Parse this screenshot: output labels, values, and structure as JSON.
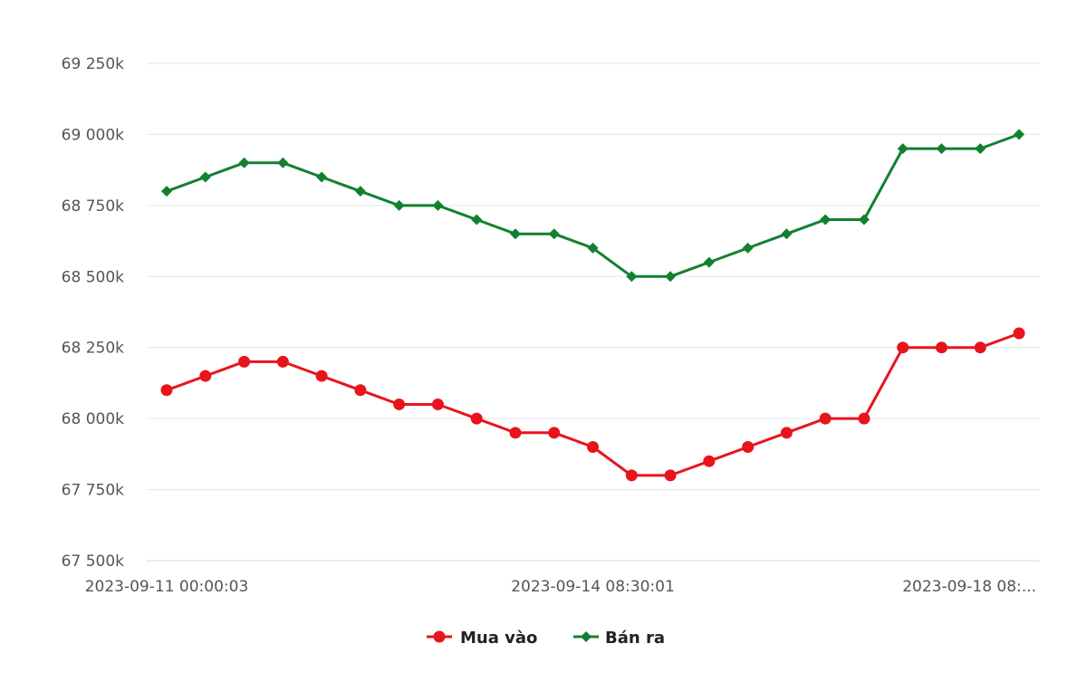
{
  "chart_data": {
    "type": "line",
    "title": "",
    "xlabel": "",
    "ylabel": "",
    "ylim": [
      67500,
      69250
    ],
    "y_ticks": [
      67500,
      67750,
      68000,
      68250,
      68500,
      68750,
      69000,
      69250
    ],
    "y_tick_labels": [
      "67 500k",
      "67 750k",
      "68 000k",
      "68 250k",
      "68 500k",
      "68 750k",
      "69 000k",
      "69 250k"
    ],
    "x_tick_labels": [
      {
        "index": 0,
        "label": "2023-09-11 00:00:03"
      },
      {
        "index": 11,
        "label": "2023-09-14 08:30:01"
      },
      {
        "index": 22,
        "label": "2023-09-18 08:..."
      }
    ],
    "x_count": 23,
    "grid": true,
    "legend_position": "bottom-center",
    "series": [
      {
        "name": "Mua vào",
        "color": "#e8141c",
        "marker": "circle",
        "values": [
          68100,
          68150,
          68200,
          68200,
          68150,
          68100,
          68050,
          68050,
          68000,
          67950,
          67950,
          67900,
          67800,
          67800,
          67850,
          67900,
          67950,
          68000,
          68000,
          68250,
          68250,
          68250,
          68300
        ]
      },
      {
        "name": "Bán ra",
        "color": "#118130",
        "marker": "diamond",
        "values": [
          68800,
          68850,
          68900,
          68900,
          68850,
          68800,
          68750,
          68750,
          68700,
          68650,
          68650,
          68600,
          68500,
          68500,
          68550,
          68600,
          68650,
          68700,
          68700,
          68950,
          68950,
          68950,
          69000
        ]
      }
    ]
  }
}
